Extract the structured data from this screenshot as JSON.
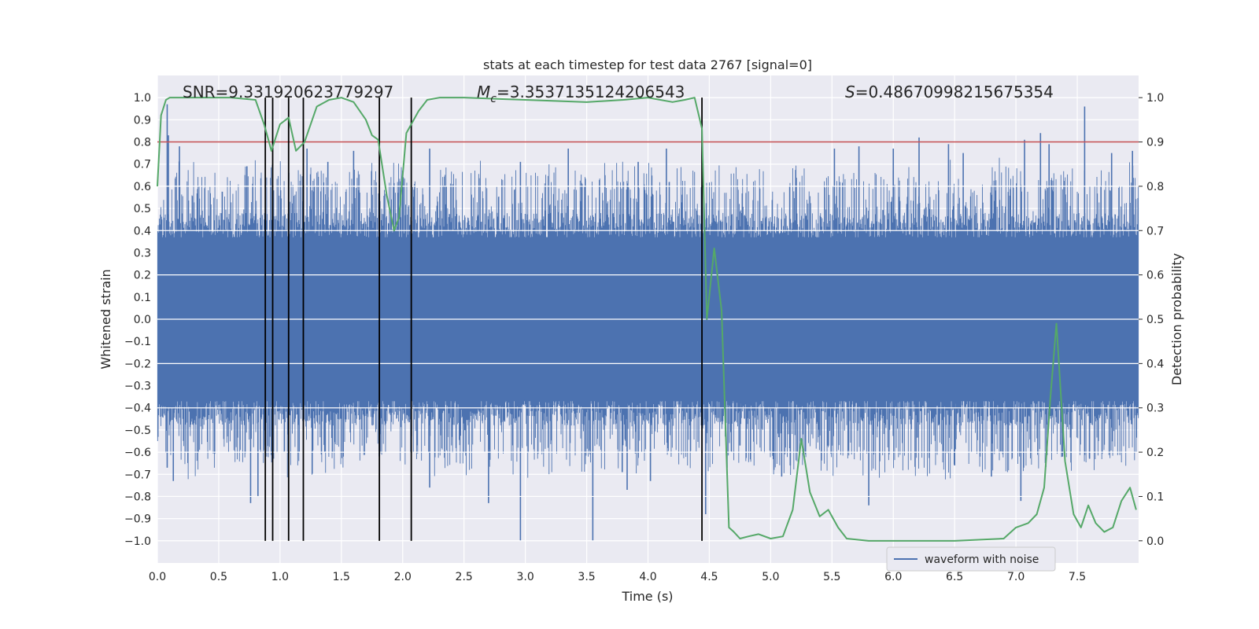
{
  "chart_data": {
    "type": "line",
    "title": "stats at each timestep for test data 2767 [signal=0]",
    "xlabel": "Time (s)",
    "ylabel": "Whitened strain",
    "ylabel_right": "Detection probability",
    "xlim": [
      0,
      8
    ],
    "ylim": [
      -1.1,
      1.1
    ],
    "ylim_right": [
      -0.05,
      1.05
    ],
    "xticks": [
      "0.0",
      "0.5",
      "1.0",
      "1.5",
      "2.0",
      "2.5",
      "3.0",
      "3.5",
      "4.0",
      "4.5",
      "5.0",
      "5.5",
      "6.0",
      "6.5",
      "7.0",
      "7.5"
    ],
    "yticks": [
      "-1.0",
      "-0.9",
      "-0.8",
      "-0.7",
      "-0.6",
      "-0.5",
      "-0.4",
      "-0.3",
      "-0.2",
      "-0.1",
      "0.0",
      "0.1",
      "0.2",
      "0.3",
      "0.4",
      "0.5",
      "0.6",
      "0.7",
      "0.8",
      "0.9",
      "1.0"
    ],
    "yticks_right": [
      "0.0",
      "0.1",
      "0.2",
      "0.3",
      "0.4",
      "0.5",
      "0.6",
      "0.7",
      "0.8",
      "0.9",
      "1.0"
    ],
    "annotations": {
      "snr": "SNR=9.331920623779297",
      "mc_symbol": "M",
      "mc_sub": "c",
      "mc_value": "=3.3537135124206543",
      "s_symbol": "S",
      "s_value": "=0.48670998215675354"
    },
    "legend": [
      "waveform with noise"
    ],
    "threshold": 0.9,
    "vlines": [
      0.88,
      0.94,
      1.07,
      1.19,
      1.81,
      2.07,
      4.44
    ],
    "waveform": {
      "name": "waveform with noise",
      "color": "#4c72b0",
      "core_amplitude": 0.37,
      "samples": 1800,
      "seed": 2767,
      "peaks_high": [
        [
          0.08,
          0.97
        ],
        [
          0.09,
          0.83
        ],
        [
          0.18,
          0.78
        ],
        [
          0.73,
          0.69
        ],
        [
          1.22,
          0.77
        ],
        [
          1.39,
          0.71
        ],
        [
          1.6,
          0.76
        ],
        [
          2.0,
          0.67
        ],
        [
          2.22,
          0.77
        ],
        [
          2.96,
          0.71
        ],
        [
          3.35,
          0.77
        ],
        [
          3.92,
          0.71
        ],
        [
          4.15,
          0.77
        ],
        [
          5.52,
          0.77
        ],
        [
          5.72,
          0.78
        ],
        [
          6.0,
          0.77
        ],
        [
          6.21,
          0.82
        ],
        [
          6.45,
          0.79
        ],
        [
          6.57,
          0.75
        ],
        [
          7.07,
          0.81
        ],
        [
          7.2,
          0.84
        ],
        [
          7.27,
          0.79
        ],
        [
          7.56,
          0.96
        ],
        [
          7.78,
          0.75
        ],
        [
          7.95,
          0.76
        ]
      ],
      "peaks_low": [
        [
          0.08,
          -0.67
        ],
        [
          0.13,
          -0.73
        ],
        [
          0.76,
          -0.83
        ],
        [
          0.82,
          -0.8
        ],
        [
          2.22,
          -0.76
        ],
        [
          2.7,
          -0.83
        ],
        [
          2.96,
          -1.0
        ],
        [
          3.55,
          -1.0
        ],
        [
          3.79,
          -0.69
        ],
        [
          3.83,
          -0.77
        ],
        [
          4.02,
          -0.73
        ],
        [
          4.47,
          -0.88
        ],
        [
          4.75,
          -0.57
        ],
        [
          5.09,
          -0.71
        ],
        [
          5.16,
          -0.66
        ],
        [
          5.8,
          -0.84
        ],
        [
          6.5,
          -0.66
        ],
        [
          6.8,
          -0.71
        ],
        [
          7.04,
          -0.82
        ],
        [
          7.38,
          -0.62
        ],
        [
          7.6,
          -0.63
        ]
      ]
    },
    "detection_probability": {
      "color": "#55a868",
      "x": [
        0.0,
        0.03,
        0.07,
        0.1,
        0.2,
        0.4,
        0.6,
        0.8,
        0.87,
        0.93,
        1.0,
        1.07,
        1.13,
        1.2,
        1.3,
        1.4,
        1.5,
        1.6,
        1.7,
        1.75,
        1.8,
        1.87,
        1.93,
        1.97,
        2.03,
        2.13,
        2.2,
        2.3,
        2.5,
        3.0,
        3.5,
        3.8,
        4.0,
        4.2,
        4.3,
        4.38,
        4.44,
        4.48,
        4.54,
        4.6,
        4.66,
        4.7,
        4.75,
        4.82,
        4.9,
        5.0,
        5.1,
        5.18,
        5.25,
        5.32,
        5.4,
        5.47,
        5.55,
        5.62,
        5.8,
        6.5,
        6.9,
        7.0,
        7.1,
        7.17,
        7.23,
        7.28,
        7.33,
        7.4,
        7.47,
        7.53,
        7.59,
        7.65,
        7.72,
        7.79,
        7.86,
        7.93,
        7.98
      ],
      "values": [
        0.8,
        0.96,
        0.995,
        1.0,
        1.0,
        1.0,
        1.0,
        0.995,
        0.94,
        0.88,
        0.94,
        0.955,
        0.88,
        0.9,
        0.98,
        0.995,
        1.0,
        0.99,
        0.95,
        0.915,
        0.905,
        0.78,
        0.7,
        0.73,
        0.92,
        0.97,
        0.995,
        1.0,
        1.0,
        0.995,
        0.99,
        0.995,
        1.0,
        0.99,
        0.995,
        1.0,
        0.93,
        0.5,
        0.66,
        0.52,
        0.03,
        0.02,
        0.005,
        0.01,
        0.015,
        0.005,
        0.01,
        0.07,
        0.23,
        0.11,
        0.055,
        0.07,
        0.03,
        0.005,
        0.0,
        0.0,
        0.005,
        0.03,
        0.04,
        0.06,
        0.12,
        0.32,
        0.49,
        0.18,
        0.06,
        0.03,
        0.08,
        0.04,
        0.02,
        0.03,
        0.09,
        0.12,
        0.07
      ]
    }
  }
}
